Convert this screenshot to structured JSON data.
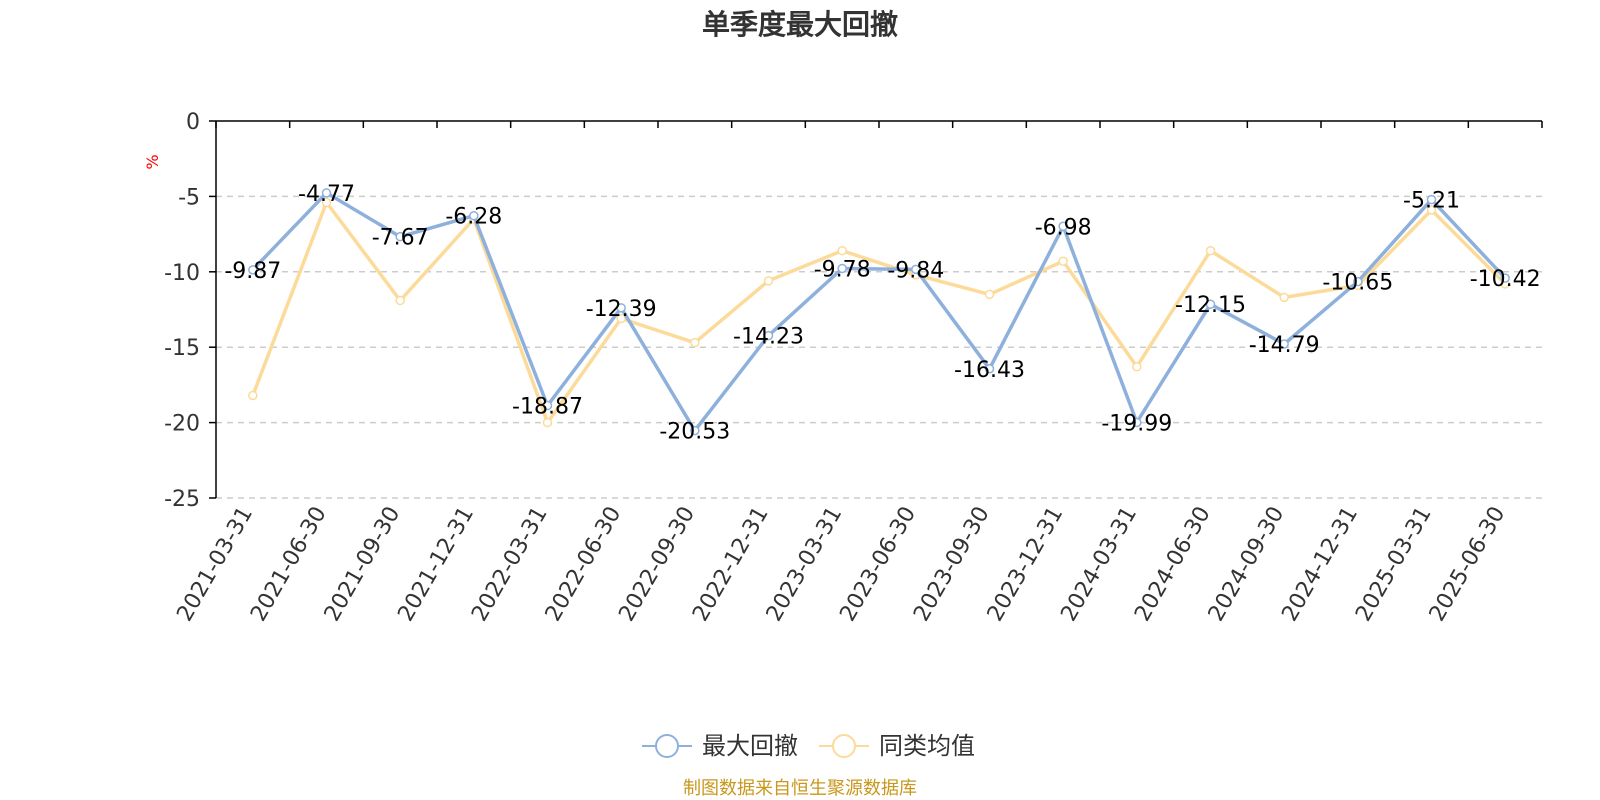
{
  "colors": {
    "series_main": "#8eb0dc",
    "series_peer": "#fcdb9a",
    "axis": "#000000",
    "grid": "#cccccc",
    "ylabel": "#ff0000",
    "source": "#c9971c"
  },
  "chart_data": {
    "type": "line",
    "title": "单季度最大回撤",
    "ylabel": "%",
    "xlabel": "",
    "ylim": [
      -25,
      0
    ],
    "yticks": [
      0,
      -5,
      -10,
      -15,
      -20,
      -25
    ],
    "grid": true,
    "legend_position": "bottom-center",
    "categories": [
      "2021-03-31",
      "2021-06-30",
      "2021-09-30",
      "2021-12-31",
      "2022-03-31",
      "2022-06-30",
      "2022-09-30",
      "2022-12-31",
      "2023-03-31",
      "2023-06-30",
      "2023-09-30",
      "2023-12-31",
      "2024-03-31",
      "2024-06-30",
      "2024-09-30",
      "2024-12-31",
      "2025-03-31",
      "2025-06-30"
    ],
    "series": [
      {
        "name": "最大回撤",
        "values": [
          -9.87,
          -4.77,
          -7.67,
          -6.28,
          -18.87,
          -12.39,
          -20.53,
          -14.23,
          -9.78,
          -9.84,
          -16.43,
          -6.98,
          -19.99,
          -12.15,
          -14.79,
          -10.65,
          -5.21,
          -10.42
        ],
        "data_labels": [
          "-9.87",
          "-4.77",
          "-7.67",
          "-6.28",
          "-18.87",
          "-12.39",
          "-20.53",
          "-14.23",
          "-9.78",
          "-9.84",
          "-16.43",
          "-6.98",
          "-19.99",
          "-12.15",
          "-14.79",
          "-10.65",
          "-5.21",
          "-10.42"
        ]
      },
      {
        "name": "同类均值",
        "values": [
          -18.2,
          -5.4,
          -11.9,
          -6.5,
          -20.0,
          -13.1,
          -14.7,
          -10.6,
          -8.6,
          -10.2,
          -11.5,
          -9.3,
          -16.3,
          -8.6,
          -11.7,
          -10.9,
          -5.9,
          -10.8
        ]
      }
    ]
  },
  "source_text": "制图数据来自恒生聚源数据库"
}
